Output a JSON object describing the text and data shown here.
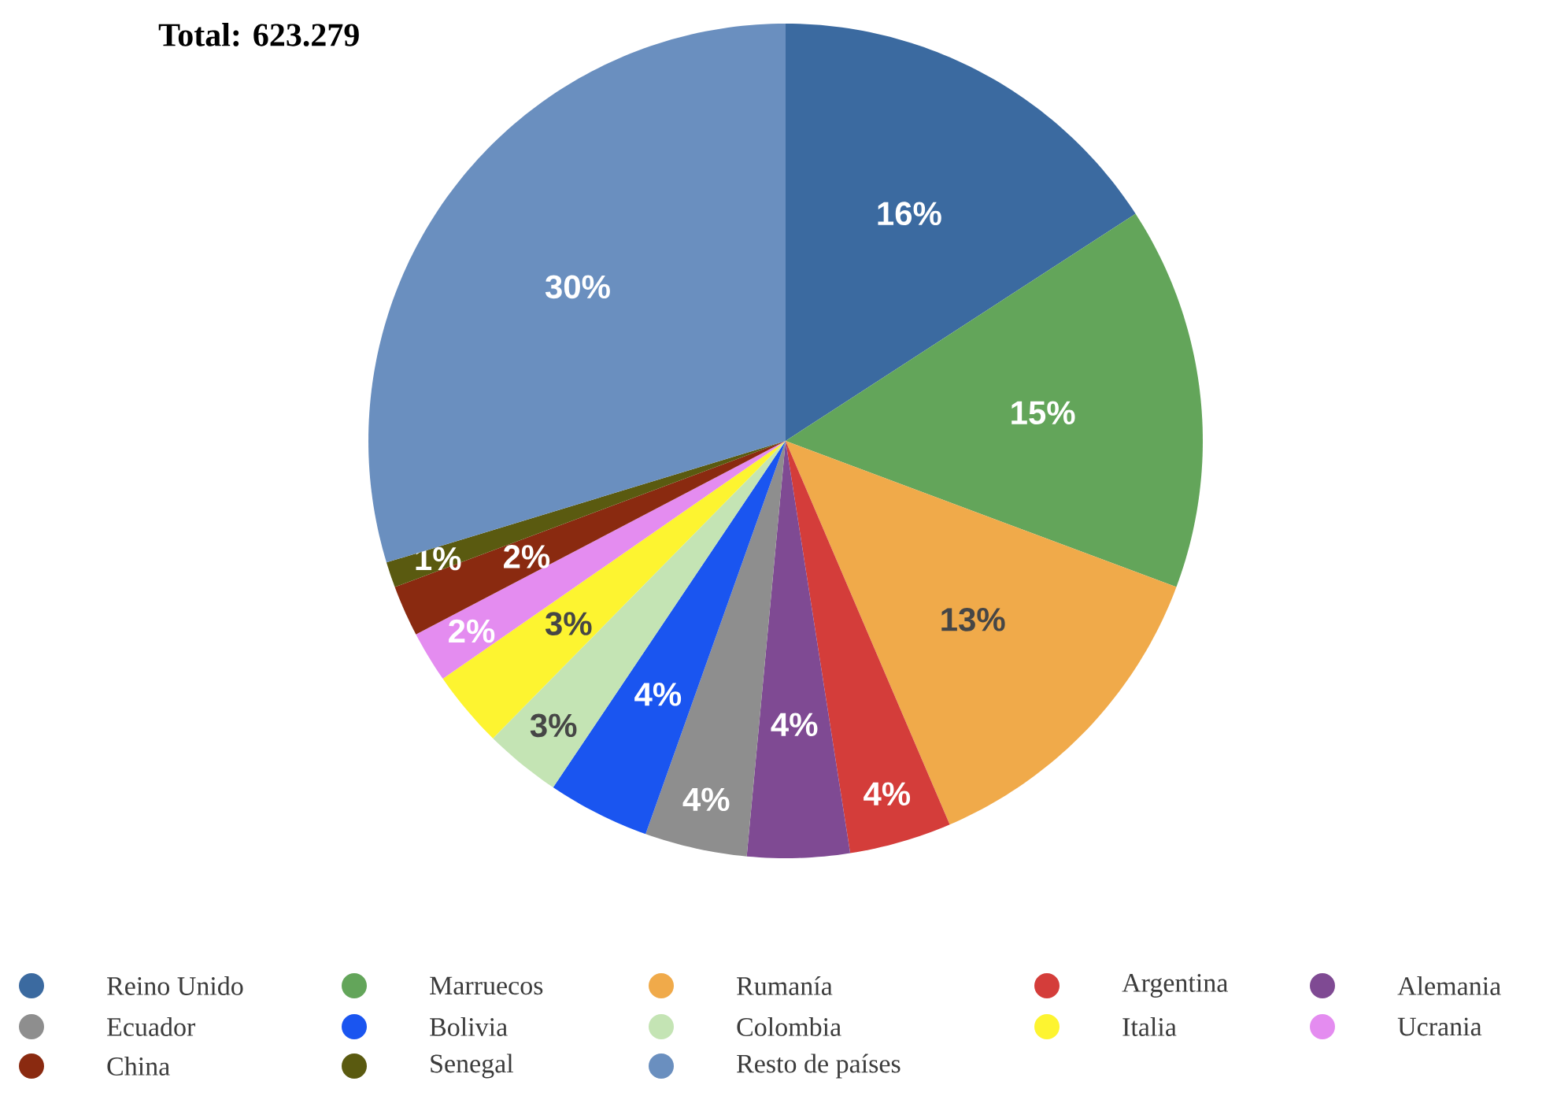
{
  "chart_data": {
    "type": "pie",
    "title": "Total: 623.279",
    "categories": [
      "Reino Unido",
      "Marruecos",
      "Rumanía",
      "Argentina",
      "Alemania",
      "Ecuador",
      "Bolivia",
      "Colombia",
      "Italia",
      "Ucrania",
      "China",
      "Senegal",
      "Resto de países"
    ],
    "values": [
      16,
      15,
      13,
      4,
      4,
      4,
      4,
      3,
      3,
      2,
      2,
      1,
      30
    ],
    "value_labels": [
      "16%",
      "15%",
      "13%",
      "4%",
      "4%",
      "4%",
      "4%",
      "3%",
      "3%",
      "2%",
      "2%",
      "1%",
      "30%"
    ],
    "colors": [
      "#3b6aa0",
      "#63a55a",
      "#f0aa4a",
      "#d43d3a",
      "#7f4a93",
      "#8e8e8e",
      "#1a55f0",
      "#c4e4b4",
      "#fdf430",
      "#e48cf0",
      "#8a2a10",
      "#5a5a10",
      "#6a8fbf"
    ],
    "legend": "bottom"
  }
}
